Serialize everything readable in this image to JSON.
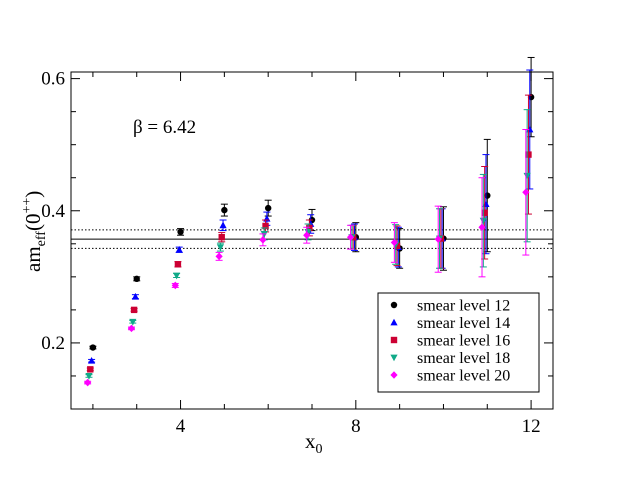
{
  "chart_data": {
    "type": "scatter",
    "title": "",
    "xlabel": "x",
    "xlabel_sub": "0",
    "ylabel_main": "am",
    "ylabel_sub": "eff",
    "ylabel_open": "(0",
    "ylabel_sup": "++",
    "ylabel_close": ")",
    "annotation": "β = 6.42",
    "xlim": [
      1.5,
      12.5
    ],
    "ylim": [
      0.1,
      0.61
    ],
    "x_ticks": [
      4,
      8,
      12
    ],
    "x_tick_labels": [
      "4",
      "8",
      "12"
    ],
    "y_ticks": [
      0.2,
      0.4,
      0.6
    ],
    "y_tick_labels": [
      "0.2",
      "0.4",
      "0.6"
    ],
    "legend_position": "bottom-right",
    "reference_lines": [
      {
        "name": "fit",
        "y": 0.357,
        "style": "solid"
      },
      {
        "name": "fit-upper",
        "y": 0.371,
        "style": "dotted"
      },
      {
        "name": "fit-lower",
        "y": 0.343,
        "style": "dotted"
      }
    ],
    "series": [
      {
        "name": "smear level 12",
        "color": "#000000",
        "marker": "circle",
        "offset": 0.0,
        "x": [
          2,
          3,
          4,
          5,
          6,
          7,
          8,
          9,
          10,
          11,
          12
        ],
        "y": [
          0.193,
          0.297,
          0.368,
          0.401,
          0.404,
          0.386,
          0.36,
          0.343,
          0.358,
          0.423,
          0.572
        ],
        "err": [
          0.002,
          0.003,
          0.005,
          0.009,
          0.012,
          0.016,
          0.022,
          0.03,
          0.048,
          0.085,
          0.06
        ]
      },
      {
        "name": "smear level 14",
        "color": "#0000ff",
        "marker": "triangle-up",
        "offset": -0.03,
        "x": [
          2,
          3,
          4,
          5,
          6,
          7,
          8,
          9,
          10,
          11,
          12
        ],
        "y": [
          0.173,
          0.27,
          0.341,
          0.378,
          0.388,
          0.38,
          0.36,
          0.345,
          0.358,
          0.41,
          0.523
        ],
        "err": [
          0.002,
          0.003,
          0.004,
          0.008,
          0.01,
          0.014,
          0.02,
          0.03,
          0.045,
          0.075,
          0.09
        ]
      },
      {
        "name": "smear level 16",
        "color": "#cc0033",
        "marker": "square",
        "offset": -0.06,
        "x": [
          2,
          3,
          4,
          5,
          6,
          7,
          8,
          9,
          10,
          11,
          12
        ],
        "y": [
          0.16,
          0.25,
          0.319,
          0.36,
          0.377,
          0.374,
          0.36,
          0.347,
          0.358,
          0.397,
          0.485
        ],
        "err": [
          0.002,
          0.002,
          0.004,
          0.007,
          0.009,
          0.012,
          0.018,
          0.03,
          0.045,
          0.07,
          0.09
        ]
      },
      {
        "name": "smear level 18",
        "color": "#11aa88",
        "marker": "triangle-down",
        "offset": -0.09,
        "x": [
          2,
          3,
          4,
          5,
          6,
          7,
          8,
          9,
          10,
          11,
          12
        ],
        "y": [
          0.15,
          0.232,
          0.302,
          0.345,
          0.365,
          0.368,
          0.36,
          0.349,
          0.358,
          0.385,
          0.453
        ],
        "err": [
          0.002,
          0.002,
          0.003,
          0.006,
          0.009,
          0.012,
          0.018,
          0.03,
          0.045,
          0.07,
          0.1
        ]
      },
      {
        "name": "smear level 20",
        "color": "#ff00ff",
        "marker": "diamond",
        "offset": -0.12,
        "x": [
          2,
          3,
          4,
          5,
          6,
          7,
          8,
          9,
          10,
          11,
          12
        ],
        "y": [
          0.14,
          0.222,
          0.287,
          0.331,
          0.356,
          0.363,
          0.36,
          0.352,
          0.357,
          0.375,
          0.428
        ],
        "err": [
          0.002,
          0.002,
          0.003,
          0.006,
          0.009,
          0.012,
          0.018,
          0.03,
          0.05,
          0.075,
          0.095
        ]
      }
    ]
  }
}
